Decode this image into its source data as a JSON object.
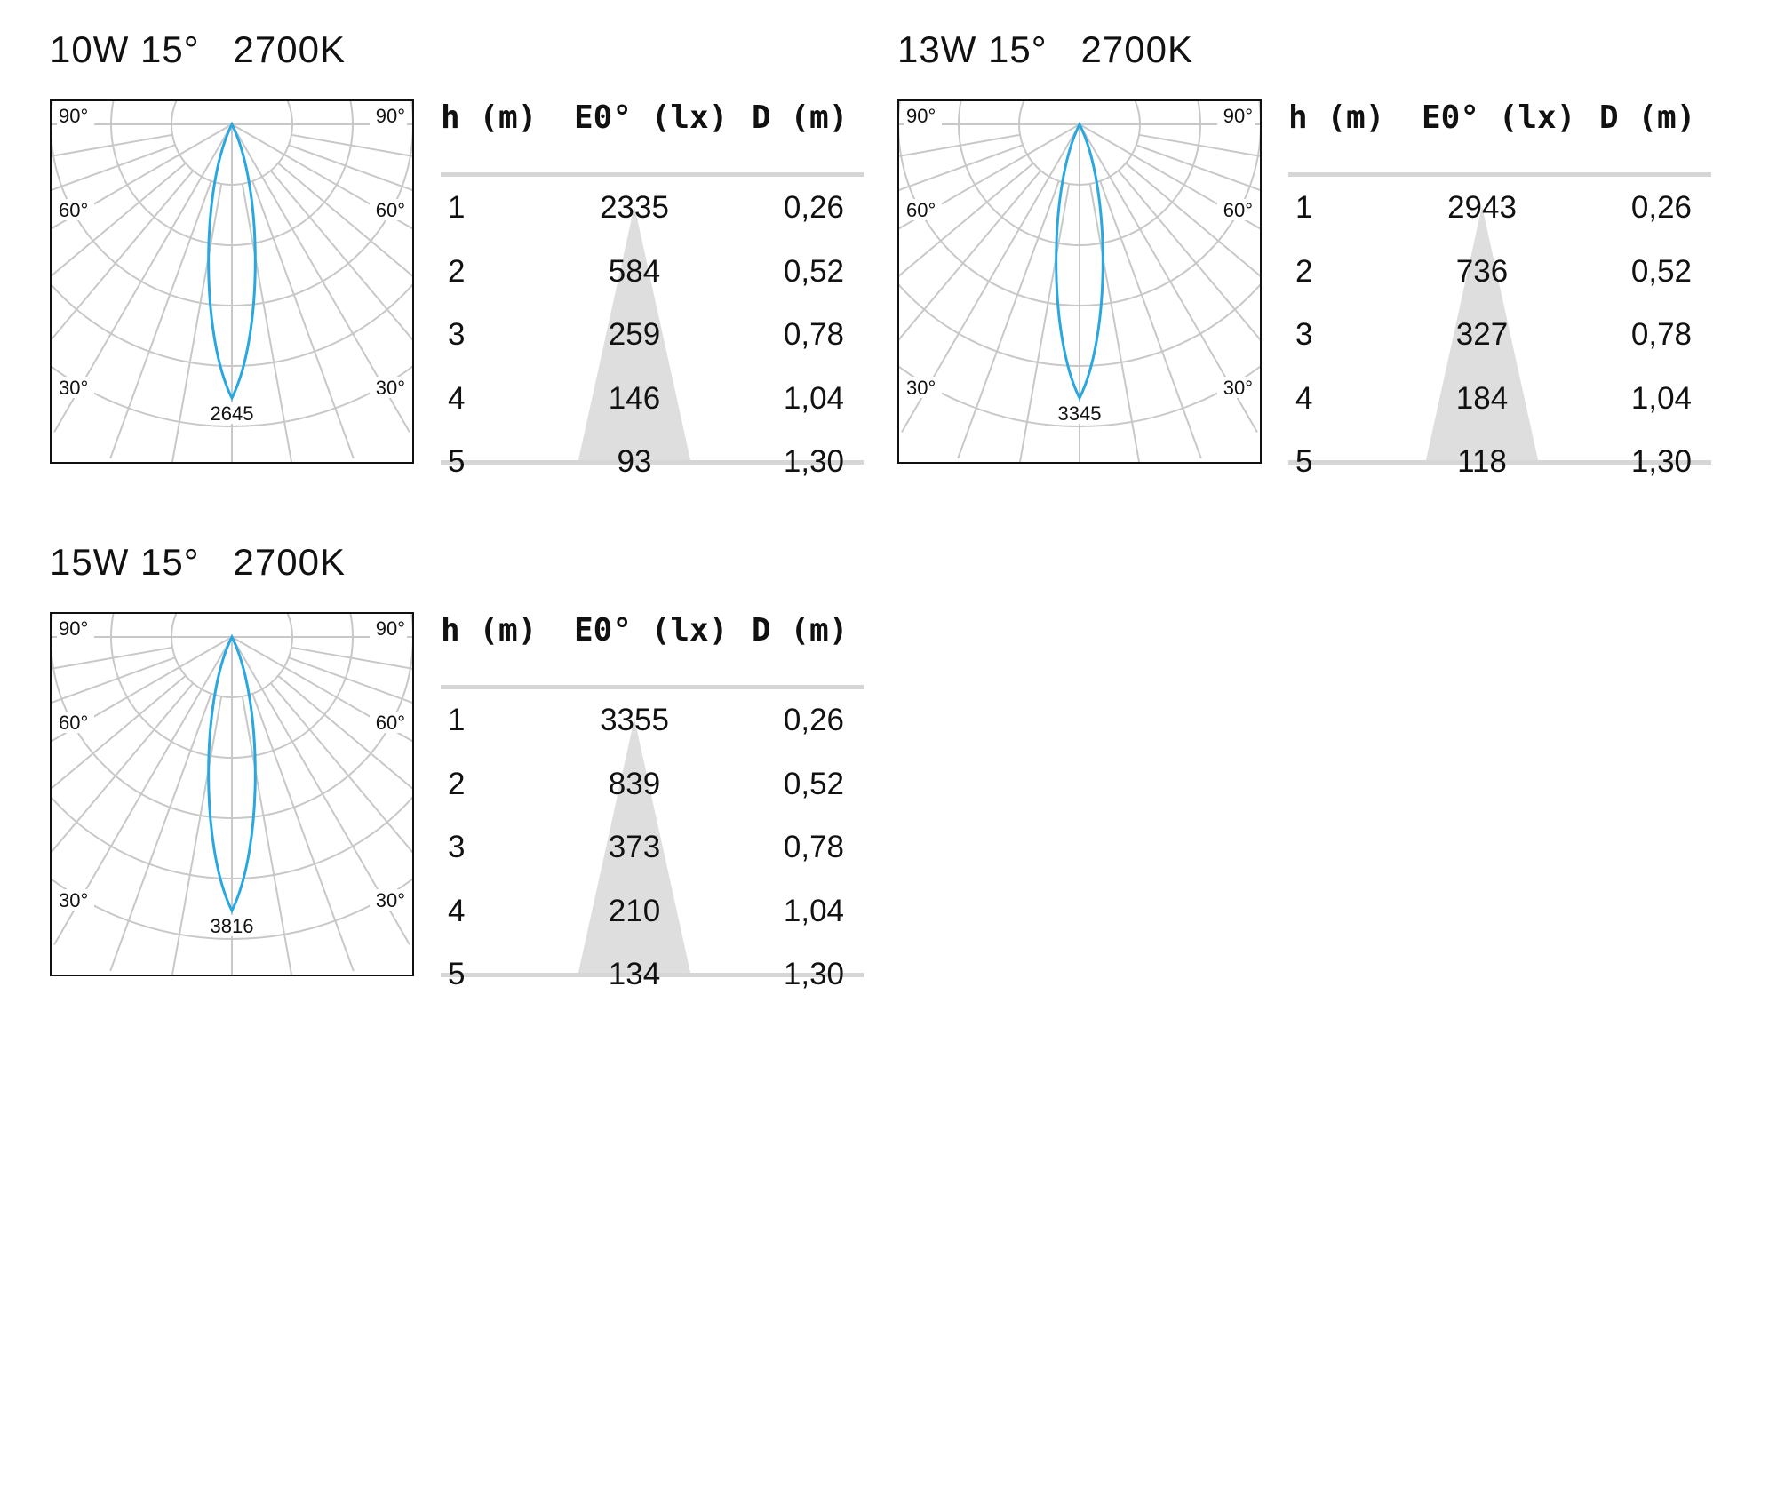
{
  "chart_data": [
    {
      "type": "table",
      "title": "10W 15°   2700K",
      "polar": {
        "angle_labels_top": [
          "90°",
          "90°"
        ],
        "angle_labels_mid": [
          "60°",
          "60°"
        ],
        "angle_labels_low": [
          "30°",
          "30°"
        ],
        "peak_value": "2645",
        "beam_angle_deg": 15,
        "curve_color": "#29a8e0"
      },
      "columns": [
        "h (m)",
        "E0° (lx)",
        "D (m)"
      ],
      "rows": [
        [
          "1",
          "2335",
          "0,26"
        ],
        [
          "2",
          "584",
          "0,52"
        ],
        [
          "3",
          "259",
          "0,78"
        ],
        [
          "4",
          "146",
          "1,04"
        ],
        [
          "5",
          "93",
          "1,30"
        ]
      ]
    },
    {
      "type": "table",
      "title": "13W 15°   2700K",
      "polar": {
        "angle_labels_top": [
          "90°",
          "90°"
        ],
        "angle_labels_mid": [
          "60°",
          "60°"
        ],
        "angle_labels_low": [
          "30°",
          "30°"
        ],
        "peak_value": "3345",
        "beam_angle_deg": 15,
        "curve_color": "#29a8e0"
      },
      "columns": [
        "h (m)",
        "E0° (lx)",
        "D (m)"
      ],
      "rows": [
        [
          "1",
          "2943",
          "0,26"
        ],
        [
          "2",
          "736",
          "0,52"
        ],
        [
          "3",
          "327",
          "0,78"
        ],
        [
          "4",
          "184",
          "1,04"
        ],
        [
          "5",
          "118",
          "1,30"
        ]
      ]
    },
    {
      "type": "table",
      "title": "15W 15°   2700K",
      "polar": {
        "angle_labels_top": [
          "90°",
          "90°"
        ],
        "angle_labels_mid": [
          "60°",
          "60°"
        ],
        "angle_labels_low": [
          "30°",
          "30°"
        ],
        "peak_value": "3816",
        "beam_angle_deg": 15,
        "curve_color": "#29a8e0"
      },
      "columns": [
        "h (m)",
        "E0° (lx)",
        "D (m)"
      ],
      "rows": [
        [
          "1",
          "3355",
          "0,26"
        ],
        [
          "2",
          "839",
          "0,52"
        ],
        [
          "3",
          "373",
          "0,78"
        ],
        [
          "4",
          "210",
          "1,04"
        ],
        [
          "5",
          "134",
          "1,30"
        ]
      ]
    }
  ],
  "colors": {
    "grid": "#c8c8c8",
    "cone": "#dedede",
    "rule": "#d6d6d6",
    "frame": "#111111"
  }
}
